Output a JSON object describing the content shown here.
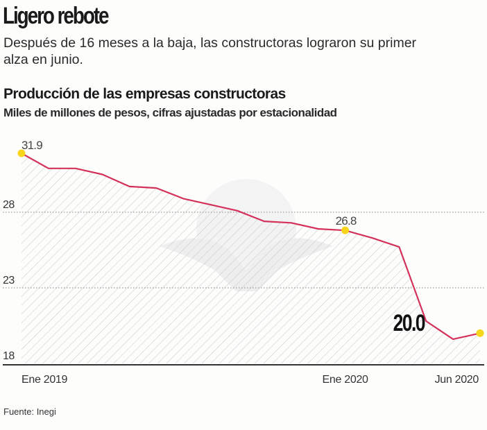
{
  "header": {
    "title": "Ligero rebote",
    "subtitle": "Después de 16 meses a la baja, las constructoras lograron su primer alza en junio."
  },
  "chart_data": {
    "type": "area",
    "title": "Producción de las empresas constructoras",
    "subtitle": "Miles de millones de pesos, cifras ajustadas por estacionalidad",
    "xlabel": "",
    "ylabel": "",
    "ylim": [
      18,
      33
    ],
    "yticks": [
      "28",
      "23",
      "18"
    ],
    "ytick_values": [
      28,
      23,
      18
    ],
    "grid": true,
    "x": [
      "Ene 2019",
      "Feb 2019",
      "Mar 2019",
      "Abr 2019",
      "May 2019",
      "Jun 2019",
      "Jul 2019",
      "Ago 2019",
      "Sep 2019",
      "Oct 2019",
      "Nov 2019",
      "Dic 2019",
      "Ene 2020",
      "Feb 2020",
      "Mar 2020",
      "Abr 2020",
      "May 2020",
      "Jun 2020"
    ],
    "xtick_labels": [
      {
        "label": "Ene 2019",
        "index": 0
      },
      {
        "label": "Ene 2020",
        "index": 12
      },
      {
        "label": "Jun 2020",
        "index": 17
      }
    ],
    "series": [
      {
        "name": "Producción",
        "color": "#d4315a",
        "values": [
          31.9,
          30.9,
          30.9,
          30.5,
          29.7,
          29.6,
          28.9,
          28.5,
          28.1,
          27.4,
          27.3,
          26.9,
          26.8,
          26.3,
          25.7,
          20.8,
          19.6,
          20.0
        ]
      }
    ],
    "annotations": [
      {
        "index": 0,
        "text": "31.9",
        "highlight": true
      },
      {
        "index": 12,
        "text": "26.8",
        "highlight": true
      },
      {
        "index": 17,
        "text": "20.0",
        "highlight": true,
        "emphasis": true
      }
    ],
    "highlight_color": "#f7d51d"
  },
  "footer": {
    "source": "Fuente: Inegi"
  }
}
